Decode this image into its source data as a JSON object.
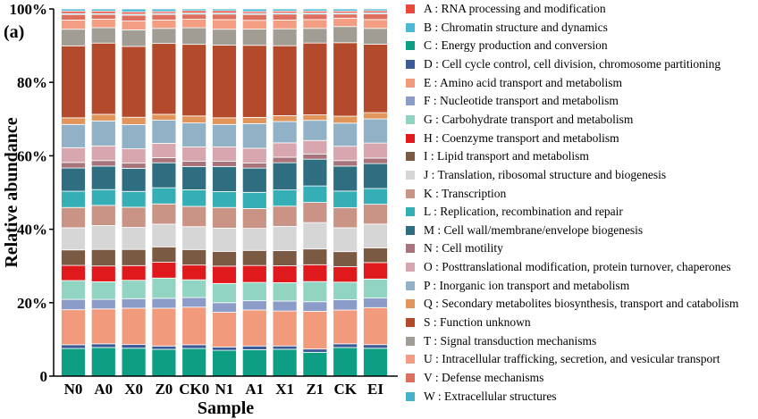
{
  "chart_data": {
    "type": "stacked-bar",
    "panel_label": "(a)",
    "xlabel": "Sample",
    "ylabel": "Relative abundance",
    "ylim": [
      0,
      100
    ],
    "yticks": [
      0,
      20,
      40,
      60,
      80,
      100
    ],
    "ytick_labels": [
      "0",
      "20%",
      "40%",
      "60%",
      "80%",
      "100%"
    ],
    "legend_position": "right",
    "categories": [
      "N0",
      "A0",
      "X0",
      "Z0",
      "CK0",
      "N1",
      "A1",
      "X1",
      "Z1",
      "CK",
      "EI"
    ],
    "series": [
      {
        "code": "C",
        "name": "C : Energy production and conversion",
        "color": "#0e9e83",
        "values": [
          7.5,
          7.8,
          7.6,
          7.3,
          7.5,
          7.0,
          7.2,
          7.3,
          6.5,
          7.8,
          7.6
        ]
      },
      {
        "code": "D",
        "name": "D : Cell cycle control, cell division, chromosome partitioning",
        "color": "#3a5a96",
        "values": [
          1.0,
          1.0,
          1.0,
          0.9,
          1.0,
          0.9,
          1.0,
          0.9,
          0.9,
          1.0,
          1.0
        ]
      },
      {
        "code": "E",
        "name": "E : Amino acid transport and metabolism",
        "color": "#f29a7c",
        "values": [
          9.5,
          9.5,
          9.9,
          10.3,
          10.2,
          9.4,
          9.8,
          9.5,
          10.3,
          9.2,
          10.1
        ]
      },
      {
        "code": "F",
        "name": "F : Nucleotide transport and metabolism",
        "color": "#8b9cc9",
        "values": [
          2.8,
          2.6,
          2.6,
          2.7,
          2.6,
          2.6,
          2.5,
          2.7,
          2.6,
          2.8,
          2.6
        ]
      },
      {
        "code": "G",
        "name": "G : Carbohydrate transport and metabolism",
        "color": "#91d4c2",
        "values": [
          5.1,
          4.8,
          5.0,
          5.5,
          4.8,
          5.2,
          5.0,
          5.0,
          5.5,
          4.8,
          5.2
        ]
      },
      {
        "code": "H",
        "name": "H : Coenzyme transport and metabolism",
        "color": "#e01a1c",
        "values": [
          4.1,
          4.3,
          4.0,
          4.3,
          4.0,
          4.7,
          4.6,
          4.6,
          4.6,
          4.2,
          4.5
        ]
      },
      {
        "code": "I",
        "name": "I : Lipid transport and metabolism",
        "color": "#7b5a44",
        "values": [
          4.2,
          4.5,
          4.4,
          4.2,
          4.2,
          4.0,
          4.1,
          4.1,
          4.3,
          4.1,
          4.0
        ]
      },
      {
        "code": "J",
        "name": "J : Translation, ribosomal structure and biogenesis",
        "color": "#d6d6d6",
        "values": [
          6.0,
          6.5,
          6.0,
          6.2,
          6.2,
          6.3,
          6.0,
          6.6,
          7.2,
          6.5,
          6.5
        ]
      },
      {
        "code": "K",
        "name": "K : Transcription",
        "color": "#c99486",
        "values": [
          5.5,
          5.5,
          5.5,
          5.5,
          5.5,
          5.6,
          5.4,
          5.5,
          5.5,
          5.5,
          5.4
        ]
      },
      {
        "code": "L",
        "name": "L : Replication, recombination and repair",
        "color": "#35aeb6",
        "values": [
          4.4,
          4.3,
          4.3,
          4.4,
          4.5,
          4.3,
          4.4,
          4.4,
          4.5,
          4.5,
          4.3
        ]
      },
      {
        "code": "M",
        "name": "M : Cell wall/membrane/envelope biogenesis",
        "color": "#2f6e80",
        "values": [
          6.3,
          6.4,
          6.3,
          6.8,
          6.3,
          6.8,
          6.6,
          7.4,
          7.3,
          6.8,
          6.8
        ]
      },
      {
        "code": "N",
        "name": "N : Cell motility",
        "color": "#a8747c",
        "values": [
          1.5,
          1.5,
          1.4,
          1.4,
          1.4,
          1.4,
          1.4,
          1.5,
          1.4,
          1.5,
          1.5
        ]
      },
      {
        "code": "O",
        "name": "O : Posttranslational modification, protein turnover, chaperones",
        "color": "#d7a6ae",
        "values": [
          4.0,
          4.0,
          3.9,
          3.9,
          3.9,
          3.9,
          4.0,
          3.9,
          3.7,
          3.9,
          4.1
        ]
      },
      {
        "code": "P",
        "name": "P : Inorganic ion transport and metabolism",
        "color": "#90b1c6",
        "values": [
          6.3,
          6.8,
          6.6,
          6.3,
          6.5,
          6.1,
          6.7,
          5.8,
          5.5,
          6.3,
          6.6
        ]
      },
      {
        "code": "Q",
        "name": "Q : Secondary metabolites biosynthesis, transport and catabolism",
        "color": "#e1955a",
        "values": [
          1.8,
          1.8,
          2.0,
          1.6,
          1.9,
          1.8,
          1.7,
          1.6,
          1.5,
          1.9,
          1.7
        ]
      },
      {
        "code": "S",
        "name": "S : Function unknown",
        "color": "#b24a2b",
        "values": [
          19.5,
          19.4,
          19.3,
          19.3,
          19.4,
          19.7,
          19.6,
          19.0,
          19.6,
          20.0,
          18.7
        ]
      },
      {
        "code": "T",
        "name": "T : Signal transduction mechanisms",
        "color": "#a19c94",
        "values": [
          4.5,
          4.2,
          4.5,
          4.1,
          4.5,
          4.3,
          4.4,
          4.6,
          4.0,
          4.4,
          4.3
        ]
      },
      {
        "code": "U",
        "name": "U : Intracellular trafficking, secretion, and vesicular transport",
        "color": "#f39d82",
        "values": [
          2.5,
          2.3,
          2.4,
          2.3,
          2.3,
          2.6,
          2.4,
          2.4,
          2.4,
          2.3,
          2.4
        ]
      },
      {
        "code": "V",
        "name": "V : Defense mechanisms",
        "color": "#dc6f5e",
        "values": [
          1.5,
          1.3,
          1.6,
          1.5,
          1.4,
          1.5,
          1.6,
          1.6,
          1.5,
          1.1,
          1.6
        ]
      },
      {
        "code": "W",
        "name": "W : Extracellular structures",
        "color": "#45b2c8",
        "values": [
          0.3,
          0.3,
          0.3,
          0.3,
          0.3,
          0.3,
          0.3,
          0.3,
          0.3,
          0.3,
          0.3
        ]
      },
      {
        "code": "A",
        "name": "A : RNA processing and modification",
        "color": "#e9483a",
        "values": [
          0.6,
          0.6,
          0.6,
          0.5,
          0.6,
          0.6,
          0.5,
          0.5,
          0.5,
          0.5,
          0.5
        ]
      },
      {
        "code": "B",
        "name": "B : Chromatin structure and dynamics",
        "color": "#4cb8d3",
        "values": [
          0.6,
          0.6,
          0.8,
          0.7,
          0.5,
          0.5,
          0.7,
          0.6,
          0.6,
          0.6,
          0.5
        ]
      }
    ],
    "legend_order": [
      "A",
      "B",
      "C",
      "D",
      "E",
      "F",
      "G",
      "H",
      "I",
      "J",
      "K",
      "L",
      "M",
      "N",
      "O",
      "P",
      "Q",
      "S",
      "T",
      "U",
      "V",
      "W"
    ]
  }
}
